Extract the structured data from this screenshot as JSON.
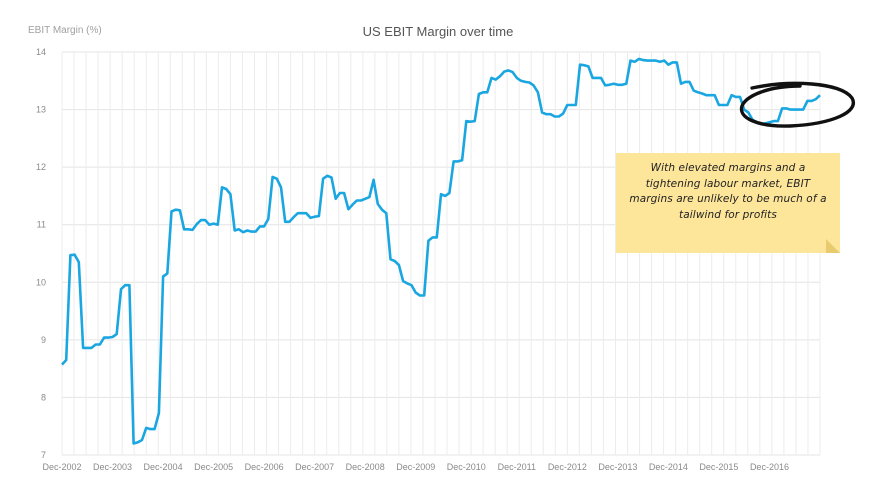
{
  "chart_data": {
    "type": "line",
    "title": "US EBIT Margin over time",
    "ylabel": "EBIT Margin (%)",
    "xlabel": "",
    "ylim": [
      7,
      14
    ],
    "yticks": [
      7,
      8,
      9,
      10,
      11,
      12,
      13,
      14
    ],
    "grid": true,
    "line_color": "#1aa6e0",
    "xticks": [
      "Dec-2002",
      "Dec-2003",
      "Dec-2004",
      "Dec-2005",
      "Dec-2006",
      "Dec-2007",
      "Dec-2008",
      "Dec-2009",
      "Dec-2010",
      "Dec-2011",
      "Dec-2012",
      "Dec-2013",
      "Dec-2014",
      "Dec-2015",
      "Dec-2016"
    ],
    "series": [
      {
        "values": [
          8.57,
          8.65,
          10.47,
          10.48,
          10.35,
          8.86,
          8.86,
          8.86,
          8.92,
          8.92,
          9.04,
          9.04,
          9.05,
          9.1,
          9.88,
          9.95,
          9.95,
          7.2,
          7.22,
          7.26,
          7.47,
          7.45,
          7.45,
          7.73,
          10.1,
          10.15,
          11.23,
          11.26,
          11.25,
          10.92,
          10.92,
          10.91,
          11.01,
          11.08,
          11.08,
          11.0,
          11.02,
          11.0,
          11.65,
          11.62,
          11.53,
          10.9,
          10.92,
          10.87,
          10.9,
          10.88,
          10.88,
          10.97,
          10.97,
          11.1,
          11.83,
          11.8,
          11.65,
          11.05,
          11.05,
          11.13,
          11.2,
          11.2,
          11.2,
          11.12,
          11.14,
          11.15,
          11.8,
          11.85,
          11.82,
          11.45,
          11.55,
          11.55,
          11.27,
          11.35,
          11.42,
          11.42,
          11.45,
          11.48,
          11.78,
          11.36,
          11.26,
          11.2,
          10.4,
          10.37,
          10.3,
          10.02,
          9.98,
          9.95,
          9.82,
          9.77,
          9.77,
          10.72,
          10.78,
          10.78,
          11.53,
          11.5,
          11.55,
          12.1,
          12.1,
          12.12,
          12.8,
          12.79,
          12.8,
          13.27,
          13.3,
          13.3,
          13.55,
          13.52,
          13.58,
          13.66,
          13.68,
          13.65,
          13.55,
          13.5,
          13.48,
          13.47,
          13.42,
          13.3,
          12.95,
          12.92,
          12.92,
          12.88,
          12.88,
          12.93,
          13.08,
          13.08,
          13.08,
          13.78,
          13.77,
          13.75,
          13.55,
          13.55,
          13.55,
          13.42,
          13.43,
          13.45,
          13.43,
          13.43,
          13.45,
          13.85,
          13.83,
          13.88,
          13.86,
          13.85,
          13.85,
          13.85,
          13.83,
          13.85,
          13.78,
          13.82,
          13.82,
          13.45,
          13.48,
          13.48,
          13.33,
          13.3,
          13.28,
          13.25,
          13.25,
          13.25,
          13.08,
          13.08,
          13.08,
          13.25,
          13.22,
          13.22,
          13.0,
          12.95,
          12.82,
          12.78,
          12.75,
          12.76,
          12.78,
          12.8,
          12.8,
          13.02,
          13.02,
          13.0,
          13.0,
          13.0,
          13.0,
          13.15,
          13.15,
          13.18,
          13.25
        ]
      }
    ],
    "annotation": {
      "text": "With elevated margins and a tightening labour market, EBIT margins are unlikely to be much of a tailwind for profits"
    }
  }
}
